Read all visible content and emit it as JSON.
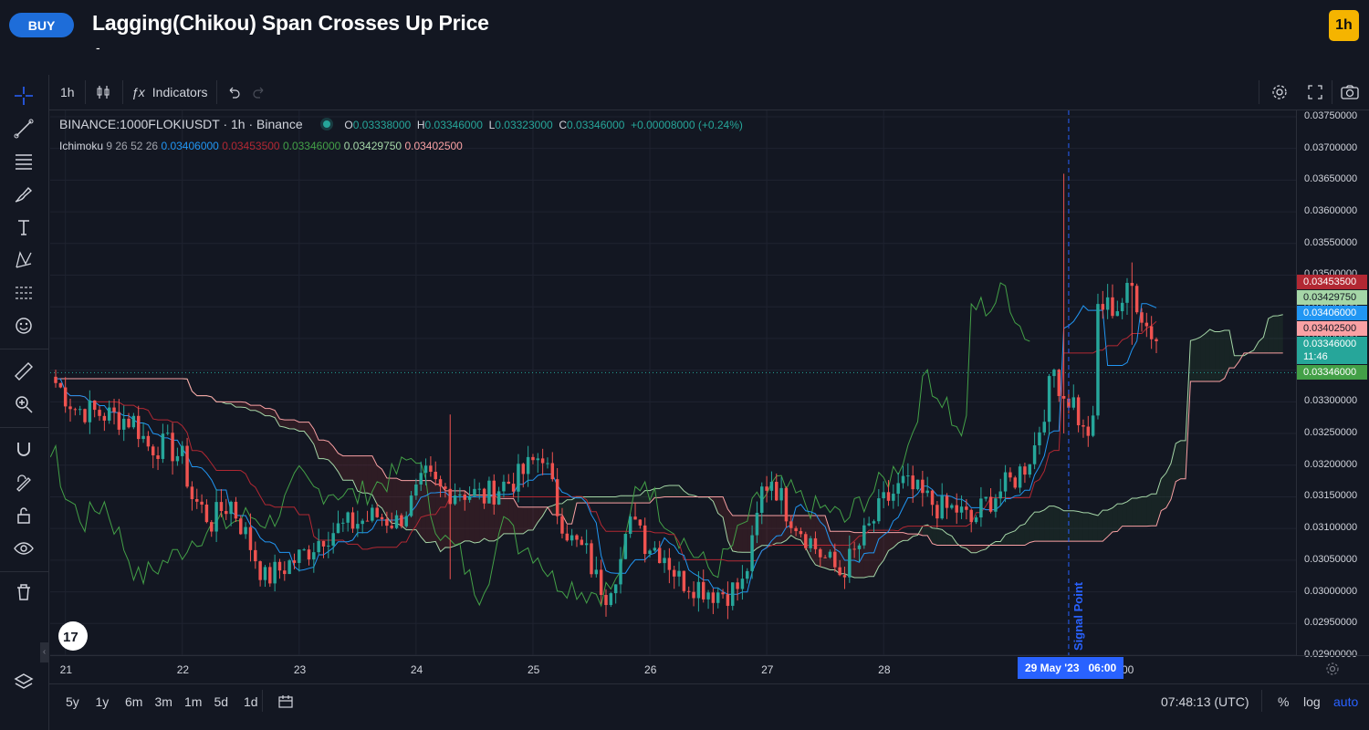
{
  "header": {
    "signal_badge": "BUY",
    "title": "Lagging(Chikou) Span Crosses Up Price",
    "subtitle": "-",
    "timeframe_badge": "1h"
  },
  "toolbar": {
    "interval": "1h",
    "indicators_label": "Indicators"
  },
  "legend": {
    "symbol": "BINANCE:1000FLOKIUSDT · 1h · Binance",
    "open_label": "O",
    "open": "0.03338000",
    "high_label": "H",
    "high": "0.03346000",
    "low_label": "L",
    "low": "0.03323000",
    "close_label": "C",
    "close": "0.03346000",
    "change": "+0.00008000 (+0.24%)",
    "indicator_name": "Ichimoku",
    "indicator_params": "9 26 52 26",
    "conversion_value": "0.03406000",
    "base_value": "0.03453500",
    "lagging_value": "0.03346000",
    "span_a_value": "0.03429750",
    "span_b_value": "0.03402500"
  },
  "price_tags": {
    "base": "0.03453500",
    "span_a": "0.03429750",
    "conversion": "0.03406000",
    "span_b": "0.03402500",
    "last_price": "0.03346000",
    "countdown": "11:46",
    "lagging": "0.03346000"
  },
  "signal_label": "Signal Point",
  "crosshair_time": "29 May '23   06:00",
  "time_axis_hidden": "00",
  "bottom_bar": {
    "ranges": [
      "5y",
      "1y",
      "6m",
      "3m",
      "1m",
      "5d",
      "1d"
    ],
    "clock": "07:48:13 (UTC)",
    "percent": "%",
    "log": "log",
    "auto": "auto"
  },
  "colors": {
    "up": "#26a69a",
    "down": "#ef5350",
    "conversion": "#2196f3",
    "base": "#b22833",
    "lagging": "#43a047",
    "span_a": "#a5d6a7",
    "span_b": "#faa1a4",
    "accent": "#2962ff"
  },
  "chart_data": {
    "type": "candlestick",
    "symbol": "BINANCE:1000FLOKIUSDT",
    "interval": "1h",
    "x_tick_labels": [
      "21",
      "22",
      "23",
      "24",
      "25",
      "26",
      "27",
      "28"
    ],
    "y_tick_labels": [
      "0.03750000",
      "0.03700000",
      "0.03650000",
      "0.03600000",
      "0.03550000",
      "0.03500000",
      "0.03450000",
      "0.03400000",
      "0.03350000",
      "0.03300000",
      "0.03250000",
      "0.03200000",
      "0.03150000",
      "0.03100000",
      "0.03050000",
      "0.03000000",
      "0.02950000",
      "0.02900000"
    ],
    "ylim": [
      0.029,
      0.0376
    ],
    "x_domain": [
      0,
      226
    ],
    "signal_index": 208,
    "close_anchors": [
      [
        0,
        0.0333
      ],
      [
        4,
        0.0329
      ],
      [
        10,
        0.0328
      ],
      [
        16,
        0.0327
      ],
      [
        19,
        0.0323
      ],
      [
        23,
        0.0323
      ],
      [
        26,
        0.0321
      ],
      [
        28,
        0.0315
      ],
      [
        32,
        0.0311
      ],
      [
        34,
        0.0313
      ],
      [
        36,
        0.0314
      ],
      [
        39,
        0.0309
      ],
      [
        43,
        0.0302
      ],
      [
        47,
        0.0304
      ],
      [
        51,
        0.0306
      ],
      [
        55,
        0.0309
      ],
      [
        58,
        0.031
      ],
      [
        62,
        0.0311
      ],
      [
        66,
        0.0312
      ],
      [
        70,
        0.0311
      ],
      [
        73,
        0.0314
      ],
      [
        76,
        0.0318
      ],
      [
        79,
        0.0316
      ],
      [
        83,
        0.0316
      ],
      [
        88,
        0.0315
      ],
      [
        92,
        0.0317
      ],
      [
        95,
        0.0318
      ],
      [
        100,
        0.0322
      ],
      [
        103,
        0.0313
      ],
      [
        106,
        0.0308
      ],
      [
        109,
        0.0306
      ],
      [
        111,
        0.0302
      ],
      [
        113,
        0.03
      ],
      [
        116,
        0.0305
      ],
      [
        119,
        0.0313
      ],
      [
        121,
        0.0308
      ],
      [
        125,
        0.0306
      ],
      [
        128,
        0.0302
      ],
      [
        132,
        0.0301
      ],
      [
        135,
        0.03
      ],
      [
        138,
        0.03
      ],
      [
        141,
        0.0301
      ],
      [
        143,
        0.0307
      ],
      [
        145,
        0.0316
      ],
      [
        147,
        0.0318
      ],
      [
        150,
        0.0313
      ],
      [
        153,
        0.031
      ],
      [
        157,
        0.0306
      ],
      [
        161,
        0.0303
      ],
      [
        164,
        0.0306
      ],
      [
        167,
        0.031
      ],
      [
        170,
        0.0314
      ],
      [
        174,
        0.0317
      ],
      [
        178,
        0.0315
      ],
      [
        182,
        0.0313
      ],
      [
        185,
        0.0313
      ],
      [
        188,
        0.0311
      ],
      [
        191,
        0.0314
      ],
      [
        194,
        0.0316
      ],
      [
        197,
        0.0318
      ],
      [
        199,
        0.032
      ],
      [
        201,
        0.0323
      ],
      [
        203,
        0.0329
      ],
      [
        205,
        0.0335
      ],
      [
        207,
        0.0331
      ],
      [
        209,
        0.033
      ],
      [
        211,
        0.0325
      ],
      [
        213,
        0.0326
      ],
      [
        214,
        0.0345
      ],
      [
        216,
        0.0345
      ],
      [
        218,
        0.0345
      ],
      [
        221,
        0.0348
      ],
      [
        224,
        0.0342
      ],
      [
        226,
        0.034
      ]
    ],
    "spikes": [
      [
        81,
        0.0328,
        0.0302
      ],
      [
        207,
        0.0366,
        0.0325
      ],
      [
        221,
        0.0352,
        0.0339
      ]
    ]
  }
}
